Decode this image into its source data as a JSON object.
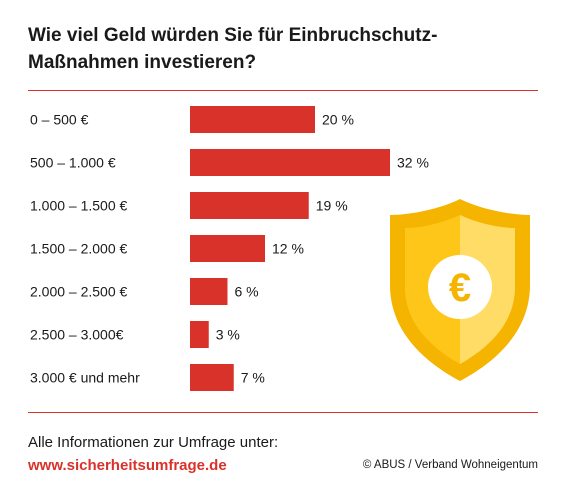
{
  "title": "Wie viel Geld würden Sie für Einbruchschutz-Maßnahmen investieren?",
  "footer": {
    "info_text": "Alle Informationen zur Umfrage unter:",
    "url": "www.sicherheitsumfrage.de",
    "credit": "© ABUS / Verband Wohneigentum"
  },
  "colors": {
    "bar": "#d9322a",
    "shield_dark": "#f5b400",
    "shield_light": "#ffd34d",
    "coin": "#ffffff",
    "euro": "#f5b400"
  },
  "icon": "euro-shield-icon",
  "shield_symbol": "€",
  "chart_data": {
    "type": "bar",
    "orientation": "horizontal",
    "categories": [
      "0 – 500 €",
      "500 – 1.000 €",
      "1.000 – 1.500 €",
      "1.500 – 2.000 €",
      "2.000 – 2.500 €",
      "2.500 – 3.000€",
      "3.000 € und mehr"
    ],
    "values": [
      20,
      32,
      19,
      12,
      6,
      3,
      7
    ],
    "value_labels": [
      "20 %",
      "32 %",
      "19 %",
      "12 %",
      "6 %",
      "3 %",
      "7 %"
    ],
    "unit": "%",
    "xlim": [
      0,
      32
    ],
    "grid": false,
    "legend": "none"
  }
}
